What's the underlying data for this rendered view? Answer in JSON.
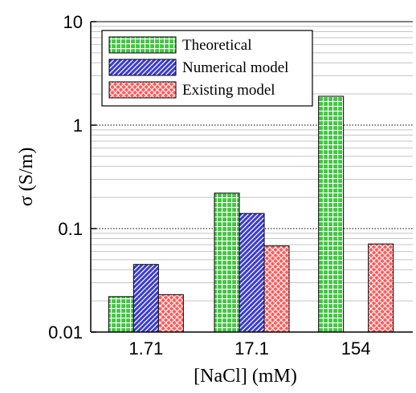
{
  "chart_data": {
    "type": "bar",
    "title": "",
    "xlabel": "[NaCl] (mM)",
    "ylabel": "σ (S/m)",
    "yscale": "log",
    "ylim": [
      0.01,
      10
    ],
    "yticks": [
      0.01,
      0.1,
      1,
      10
    ],
    "ytick_labels": [
      "0.01",
      "0.1",
      "1",
      "10"
    ],
    "categories": [
      "1.71",
      "17.1",
      "154"
    ],
    "grid": {
      "major_dotted": true,
      "minor_gray": true
    },
    "legend_position": "top-left",
    "series": [
      {
        "name": "Theoretical",
        "values": [
          0.022,
          0.22,
          1.9
        ],
        "color": "#44c544",
        "pattern": "grid"
      },
      {
        "name": "Numerical model",
        "values": [
          0.045,
          0.14,
          null
        ],
        "color": "#3b3bd0",
        "pattern": "diagonal-hatch"
      },
      {
        "name": "Existing model",
        "values": [
          0.023,
          0.068,
          0.071
        ],
        "color": "#ff5a5a",
        "pattern": "crosshatch"
      }
    ]
  }
}
